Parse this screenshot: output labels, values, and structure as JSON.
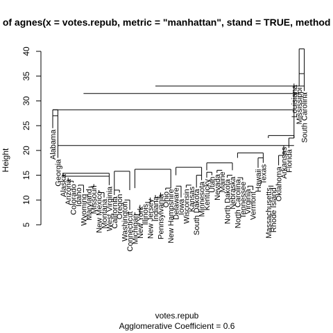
{
  "chart_data": {
    "type": "dendrogram",
    "title": "Dendrogram of  agnes(x = votes.repub, metric = \"manhattan\", stand = TRUE, method = \"average\")",
    "xlabel": "votes.repub",
    "sublabel": "Agglomerative Coefficient =  0.6",
    "ylabel": "Height",
    "ylim": [
      5,
      40
    ],
    "y_ticks": [
      5,
      10,
      15,
      20,
      25,
      30,
      35,
      40
    ],
    "leaves": [
      "Alabama",
      "Georgia",
      "Alaska",
      "Arizona",
      "Colorado",
      "Idaho",
      "Wyoming",
      "Maryland",
      "Missouri",
      "New Mexico",
      "Montana",
      "West Virginia",
      "California",
      "Oregon",
      "Washington",
      "Connecticut",
      "Michigan",
      "New York",
      "Illinois",
      "New Jersey",
      "Indiana",
      "Pennsylvania",
      "Ohio",
      "New Hampshire",
      "Delaware",
      "Iowa",
      "Wisconsin",
      "Kansas",
      "South Dakota",
      "Minnesota",
      "Kentucky",
      "Utah",
      "Nevada",
      "Maine",
      "North Dakota",
      "Nebraska",
      "North Carolina",
      "Tennessee",
      "Virginia",
      "Vermont",
      "Hawaii",
      "Texas",
      "Massachusetts",
      "Rhode Island",
      "Oklahoma",
      "Arkansas",
      "Florida",
      "Louisiana",
      "Mississippi",
      "South Carolina"
    ],
    "merges": [
      {
        "left": "Alabama",
        "right": "Georgia",
        "height": 27.0
      },
      {
        "left": "Louisiana",
        "right": "Mississippi",
        "height": 35.5
      },
      {
        "left": "Massachusetts",
        "right": "Rhode Island",
        "height": 12.8
      }
    ],
    "top_merge_height": 40.5
  }
}
